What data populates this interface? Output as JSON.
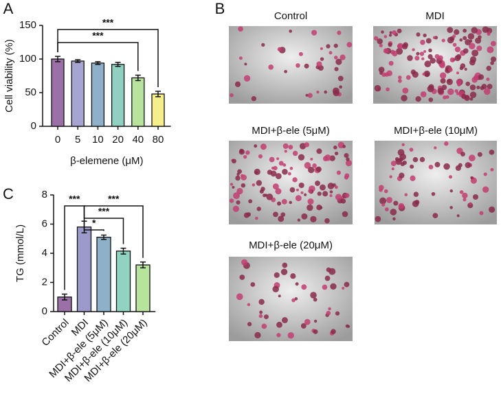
{
  "panel_labels": [
    "A",
    "B",
    "C"
  ],
  "chart_data": [
    {
      "type": "bar",
      "ylabel": "Cell viability (%)",
      "xlabel": "β-elemene (μM)",
      "categories": [
        "0",
        "5",
        "10",
        "20",
        "40",
        "80"
      ],
      "values": [
        100,
        97,
        94,
        92,
        72,
        48
      ],
      "errors": [
        4,
        2,
        2,
        3,
        4,
        4
      ],
      "colors": [
        "#9b70a6",
        "#a6a4d0",
        "#8eb0c9",
        "#8fd0c0",
        "#b7e39c",
        "#f6ee8a"
      ],
      "ylim": [
        0,
        150
      ],
      "yticks": [
        0,
        50,
        100,
        150
      ],
      "significance": [
        {
          "between": [
            "0",
            "80"
          ],
          "label": "***"
        },
        {
          "between": [
            "0",
            "40"
          ],
          "label": "***"
        }
      ]
    },
    {
      "type": "bar",
      "ylabel": "TG (mmol/L)",
      "categories": [
        "Control",
        "MDI",
        "MDI+β-ele (5μM)",
        "MDI+β-ele (10μM)",
        "MDI+β-ele (20μM)"
      ],
      "values": [
        1.0,
        5.8,
        5.1,
        4.15,
        3.2
      ],
      "errors": [
        0.2,
        0.4,
        0.15,
        0.2,
        0.2
      ],
      "colors": [
        "#9b70a6",
        "#9c9acb",
        "#8eb0c9",
        "#8fd3c0",
        "#b7e39c"
      ],
      "ylim": [
        0,
        8
      ],
      "yticks": [
        0,
        2,
        4,
        6,
        8
      ],
      "xtick_rotation": -45,
      "significance": [
        {
          "between": [
            "Control",
            "MDI"
          ],
          "label": "***"
        },
        {
          "between": [
            "MDI",
            "MDI+β-ele (20μM)"
          ],
          "label": "***"
        },
        {
          "between": [
            "MDI",
            "MDI+β-ele (10μM)"
          ],
          "label": "***"
        },
        {
          "between": [
            "MDI",
            "MDI+β-ele (5μM)"
          ],
          "label": "*"
        }
      ]
    }
  ],
  "images": {
    "captions": [
      "Control",
      "MDI",
      "MDI+β-ele (5μM)",
      "MDI+β-ele (10μM)",
      "MDI+β-ele (20μM)"
    ]
  }
}
